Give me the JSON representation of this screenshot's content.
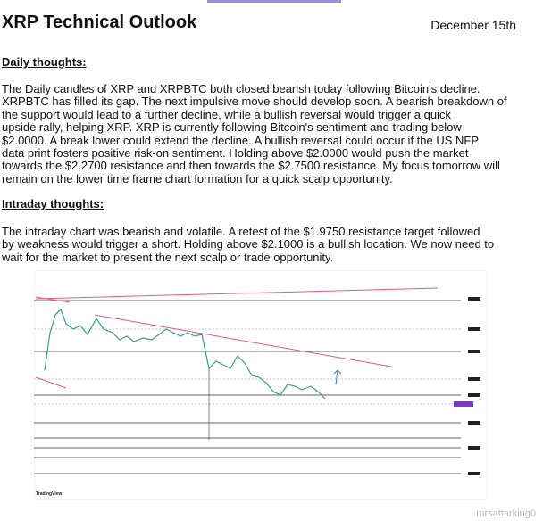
{
  "header": {
    "title": "XRP Technical Outlook",
    "date": "December 15th"
  },
  "sections": [
    {
      "heading": "Daily thoughts:",
      "lines": [
        "The Daily candles of XRP and XRPBTC both closed bearish today following Bitcoin's decline.",
        "XRPBTC has filled its gap. The next impulsive move should develop soon. A bearish breakdown of",
        "the support would lead to a further decline, while a bullish reversal would trigger a quick",
        "upside rally, helping XRP. XRP is currently following Bitcoin's sentiment and trading below",
        "$2.0000. A break lower could extend the decline. A bullish reversal could occur if the US NFP",
        "data print fosters positive risk‑on sentiment. Holding above $2.0000 would push the market",
        "towards the $2.2700 resistance and then towards the $2.7500 resistance. My focus tomorrow will",
        "remain on the lower time frame chart formation for a quick scalp opportunity."
      ]
    },
    {
      "heading": "Intraday thoughts:",
      "lines": [
        "The intraday chart was bearish and volatile. A retest of the $1.9750 resistance target followed",
        "by weakness would trigger a short. Holding above $2.1000 is a bullish location. We now need to",
        "wait for the market to present the next scalp or trade opportunity."
      ]
    }
  ],
  "chart_image": {
    "brand": "TradingView"
  },
  "watermark": "mrsattarking0"
}
